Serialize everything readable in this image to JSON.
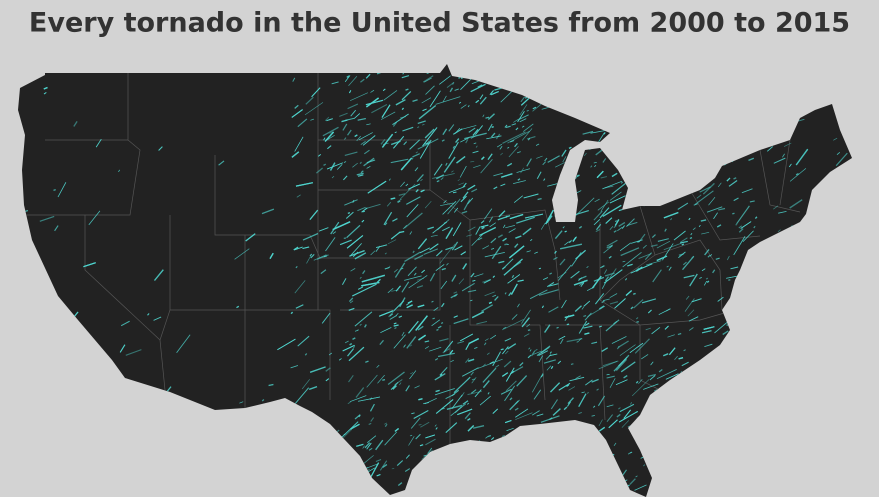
{
  "title": "Every tornado in the United States from 2000 to 2015"
}
